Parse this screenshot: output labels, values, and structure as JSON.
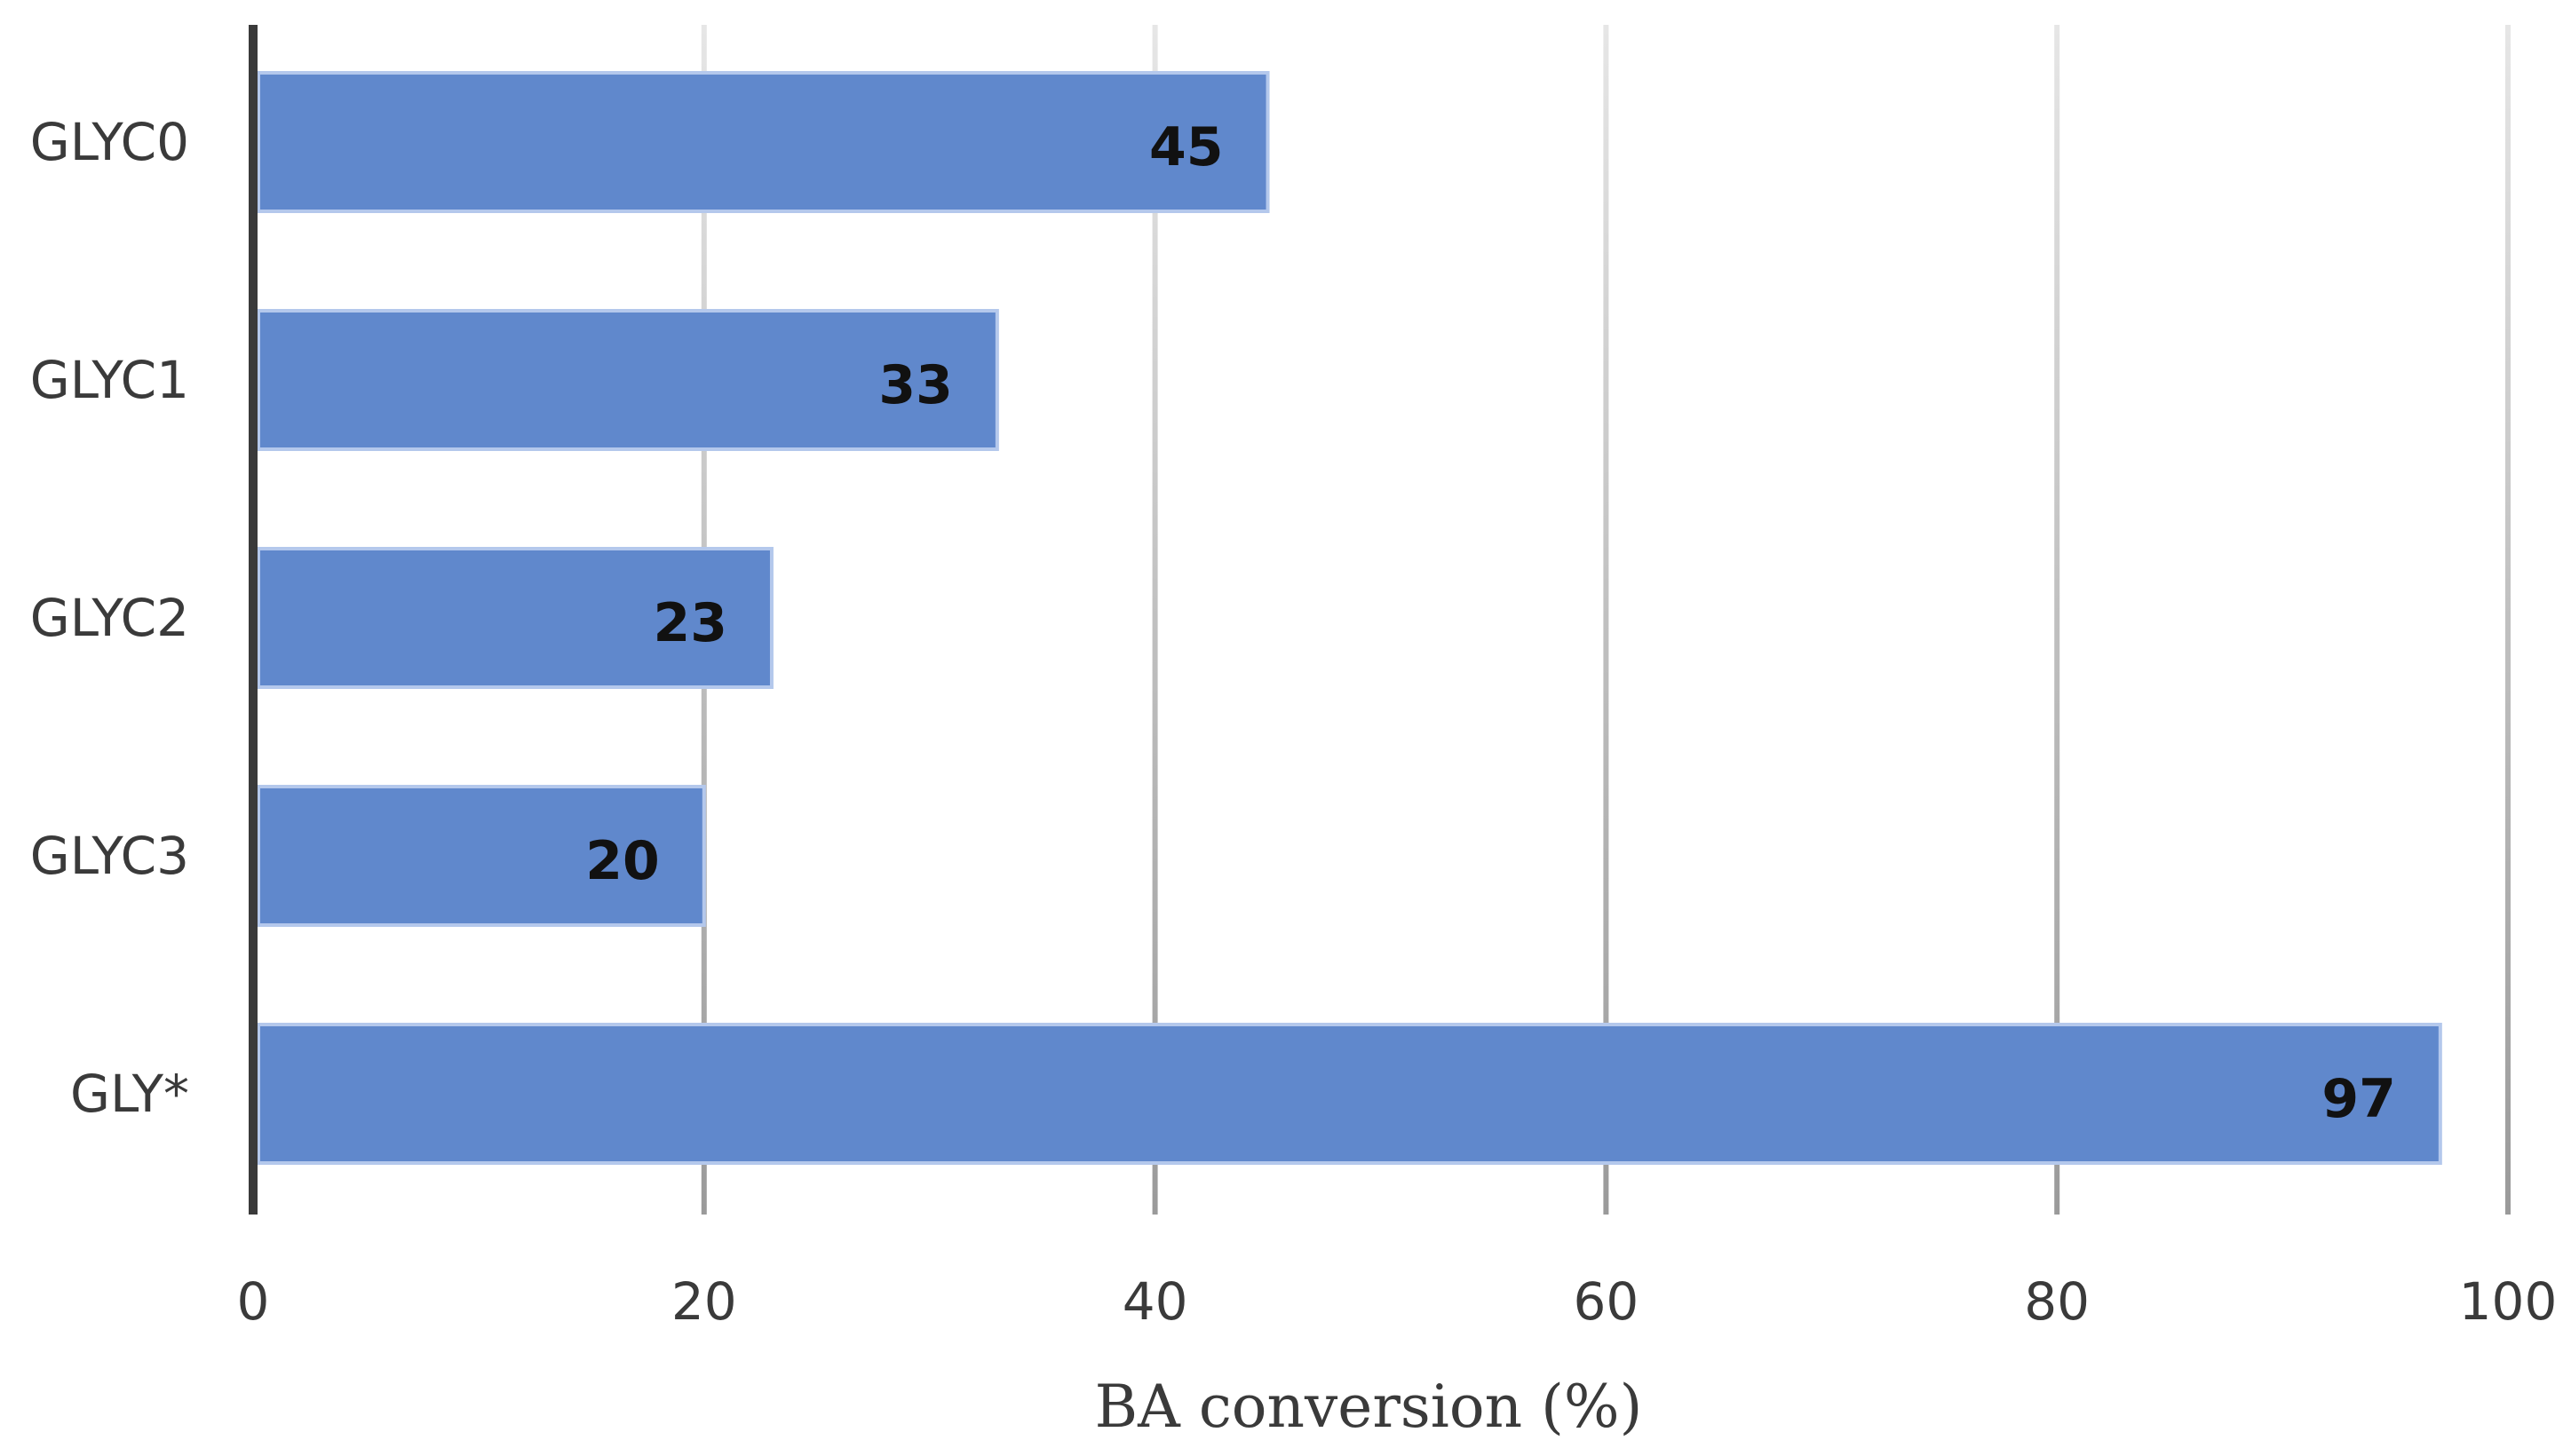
{
  "chart_data": {
    "type": "bar",
    "orientation": "horizontal",
    "categories": [
      "GLYC0",
      "GLYC1",
      "GLYC2",
      "GLYC3",
      "GLY*"
    ],
    "values": [
      45,
      33,
      23,
      20,
      97
    ],
    "data_labels": [
      "45",
      "33",
      "23",
      "20",
      "97"
    ],
    "title": "",
    "xlabel": "BA conversion (%)",
    "ylabel": "",
    "xlim": [
      0,
      100
    ],
    "xticks": [
      0,
      20,
      40,
      60,
      80,
      100
    ],
    "xtick_labels": [
      "0",
      "20",
      "40",
      "60",
      "80",
      "100"
    ],
    "grid": "vertical",
    "legend": "none",
    "bar_color": "#6088cc",
    "bar_edge_color": "#b4c8ec"
  }
}
